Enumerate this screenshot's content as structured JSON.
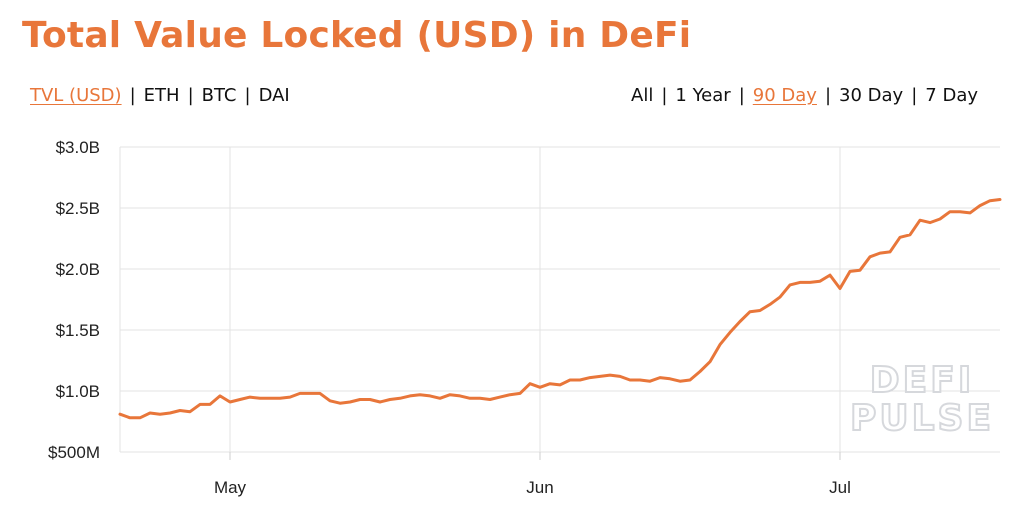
{
  "title": "Total Value Locked (USD) in DeFi",
  "colors": {
    "accent": "#e8763a",
    "grid": "#e3e3e3",
    "text": "#111111"
  },
  "metric_tabs": {
    "items": [
      {
        "label": "TVL (USD)",
        "active": true
      },
      {
        "label": "ETH",
        "active": false
      },
      {
        "label": "BTC",
        "active": false
      },
      {
        "label": "DAI",
        "active": false
      }
    ],
    "separator": "|"
  },
  "range_tabs": {
    "items": [
      {
        "label": "All",
        "active": false
      },
      {
        "label": "1 Year",
        "active": false
      },
      {
        "label": "90 Day",
        "active": true
      },
      {
        "label": "30 Day",
        "active": false
      },
      {
        "label": "7 Day",
        "active": false
      }
    ],
    "separator": "|"
  },
  "watermark": [
    "DEFI",
    "PULSE"
  ],
  "chart_data": {
    "type": "line",
    "title": "Total Value Locked (USD) in DeFi",
    "x_tick_labels": [
      {
        "date": "2020-05-01",
        "label": "May"
      },
      {
        "date": "2020-06-01",
        "label": "Jun"
      },
      {
        "date": "2020-07-01",
        "label": "Jul"
      }
    ],
    "y_tick_labels": [
      {
        "value": 500000000,
        "label": "$500M"
      },
      {
        "value": 1000000000,
        "label": "$1.0B"
      },
      {
        "value": 1500000000,
        "label": "$1.5B"
      },
      {
        "value": 2000000000,
        "label": "$2.0B"
      },
      {
        "value": 2500000000,
        "label": "$2.5B"
      },
      {
        "value": 3000000000,
        "label": "$3.0B"
      }
    ],
    "xlim": [
      "2020-04-20",
      "2020-07-17"
    ],
    "ylim": [
      500000000,
      3000000000
    ],
    "grid": true,
    "series": [
      {
        "color": "#e8763a",
        "points": [
          [
            "2020-04-20",
            0.81
          ],
          [
            "2020-04-21",
            0.78
          ],
          [
            "2020-04-22",
            0.78
          ],
          [
            "2020-04-23",
            0.82
          ],
          [
            "2020-04-24",
            0.81
          ],
          [
            "2020-04-25",
            0.82
          ],
          [
            "2020-04-26",
            0.84
          ],
          [
            "2020-04-27",
            0.83
          ],
          [
            "2020-04-28",
            0.89
          ],
          [
            "2020-04-29",
            0.89
          ],
          [
            "2020-04-30",
            0.96
          ],
          [
            "2020-05-01",
            0.91
          ],
          [
            "2020-05-02",
            0.93
          ],
          [
            "2020-05-03",
            0.95
          ],
          [
            "2020-05-04",
            0.94
          ],
          [
            "2020-05-05",
            0.94
          ],
          [
            "2020-05-06",
            0.94
          ],
          [
            "2020-05-07",
            0.95
          ],
          [
            "2020-05-08",
            0.98
          ],
          [
            "2020-05-09",
            0.98
          ],
          [
            "2020-05-10",
            0.98
          ],
          [
            "2020-05-11",
            0.92
          ],
          [
            "2020-05-12",
            0.9
          ],
          [
            "2020-05-13",
            0.91
          ],
          [
            "2020-05-14",
            0.93
          ],
          [
            "2020-05-15",
            0.93
          ],
          [
            "2020-05-16",
            0.91
          ],
          [
            "2020-05-17",
            0.93
          ],
          [
            "2020-05-18",
            0.94
          ],
          [
            "2020-05-19",
            0.96
          ],
          [
            "2020-05-20",
            0.97
          ],
          [
            "2020-05-21",
            0.96
          ],
          [
            "2020-05-22",
            0.94
          ],
          [
            "2020-05-23",
            0.97
          ],
          [
            "2020-05-24",
            0.96
          ],
          [
            "2020-05-25",
            0.94
          ],
          [
            "2020-05-26",
            0.94
          ],
          [
            "2020-05-27",
            0.93
          ],
          [
            "2020-05-28",
            0.95
          ],
          [
            "2020-05-29",
            0.97
          ],
          [
            "2020-05-30",
            0.98
          ],
          [
            "2020-05-31",
            1.06
          ],
          [
            "2020-06-01",
            1.03
          ],
          [
            "2020-06-02",
            1.06
          ],
          [
            "2020-06-03",
            1.05
          ],
          [
            "2020-06-04",
            1.09
          ],
          [
            "2020-06-05",
            1.09
          ],
          [
            "2020-06-06",
            1.11
          ],
          [
            "2020-06-07",
            1.12
          ],
          [
            "2020-06-08",
            1.13
          ],
          [
            "2020-06-09",
            1.12
          ],
          [
            "2020-06-10",
            1.09
          ],
          [
            "2020-06-11",
            1.09
          ],
          [
            "2020-06-12",
            1.08
          ],
          [
            "2020-06-13",
            1.11
          ],
          [
            "2020-06-14",
            1.1
          ],
          [
            "2020-06-15",
            1.08
          ],
          [
            "2020-06-16",
            1.09
          ],
          [
            "2020-06-17",
            1.16
          ],
          [
            "2020-06-18",
            1.24
          ],
          [
            "2020-06-19",
            1.38
          ],
          [
            "2020-06-20",
            1.48
          ],
          [
            "2020-06-21",
            1.57
          ],
          [
            "2020-06-22",
            1.65
          ],
          [
            "2020-06-23",
            1.66
          ],
          [
            "2020-06-24",
            1.71
          ],
          [
            "2020-06-25",
            1.77
          ],
          [
            "2020-06-26",
            1.87
          ],
          [
            "2020-06-27",
            1.89
          ],
          [
            "2020-06-28",
            1.89
          ],
          [
            "2020-06-29",
            1.9
          ],
          [
            "2020-06-30",
            1.95
          ],
          [
            "2020-07-01",
            1.84
          ],
          [
            "2020-07-02",
            1.98
          ],
          [
            "2020-07-03",
            1.99
          ],
          [
            "2020-07-04",
            2.1
          ],
          [
            "2020-07-05",
            2.13
          ],
          [
            "2020-07-06",
            2.14
          ],
          [
            "2020-07-07",
            2.26
          ],
          [
            "2020-07-08",
            2.28
          ],
          [
            "2020-07-09",
            2.4
          ],
          [
            "2020-07-10",
            2.38
          ],
          [
            "2020-07-11",
            2.41
          ],
          [
            "2020-07-12",
            2.47
          ],
          [
            "2020-07-13",
            2.47
          ],
          [
            "2020-07-14",
            2.46
          ],
          [
            "2020-07-15",
            2.52
          ],
          [
            "2020-07-16",
            2.56
          ],
          [
            "2020-07-17",
            2.57
          ]
        ],
        "y_unit_multiplier": 1000000000
      }
    ]
  }
}
